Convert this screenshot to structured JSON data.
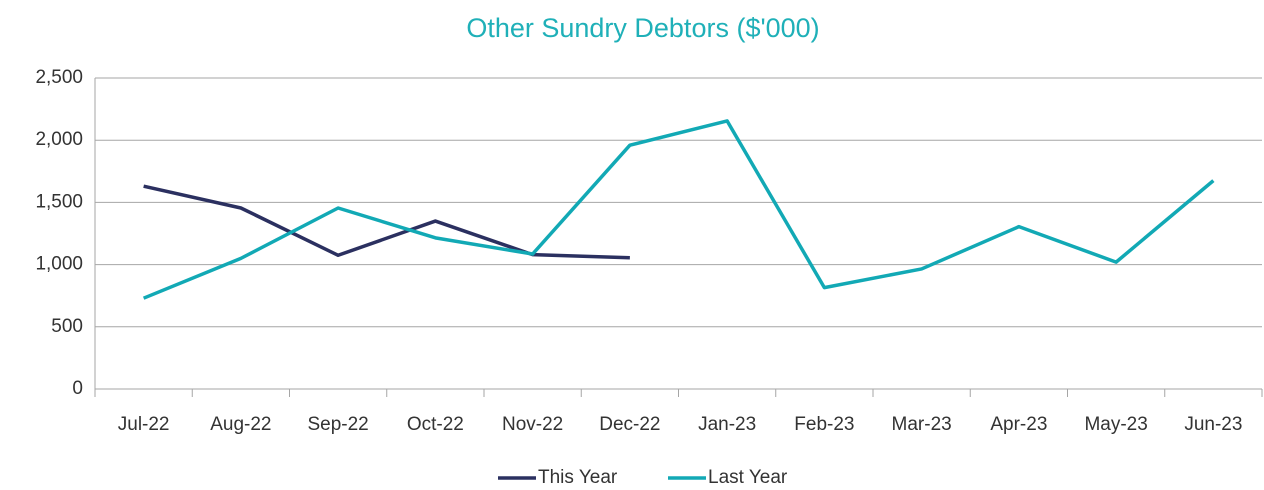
{
  "chart_data": {
    "type": "line",
    "title": "Other Sundry Debtors ($'000)",
    "categories": [
      "Jul-22",
      "Aug-22",
      "Sep-22",
      "Oct-22",
      "Nov-22",
      "Dec-22",
      "Jan-23",
      "Feb-23",
      "Mar-23",
      "Apr-23",
      "May-23",
      "Jun-23"
    ],
    "series": [
      {
        "name": "This Year",
        "color": "#2b3060",
        "values": [
          1630,
          1455,
          1075,
          1350,
          1080,
          1055,
          null,
          null,
          null,
          null,
          null,
          null
        ]
      },
      {
        "name": "Last Year",
        "color": "#12a9b5",
        "values": [
          730,
          1050,
          1455,
          1215,
          1085,
          1960,
          2155,
          815,
          965,
          1305,
          1020,
          1675
        ]
      }
    ],
    "ylim": [
      0,
      2500
    ],
    "yticks": [
      0,
      500,
      {
        "value": 1000,
        "label": "1,000"
      },
      {
        "value": 1500,
        "label": "1,500"
      },
      {
        "value": 2000,
        "label": "2,000"
      },
      {
        "value": 2500,
        "label": "2,500"
      }
    ],
    "grid": true,
    "legend": "bottom"
  }
}
